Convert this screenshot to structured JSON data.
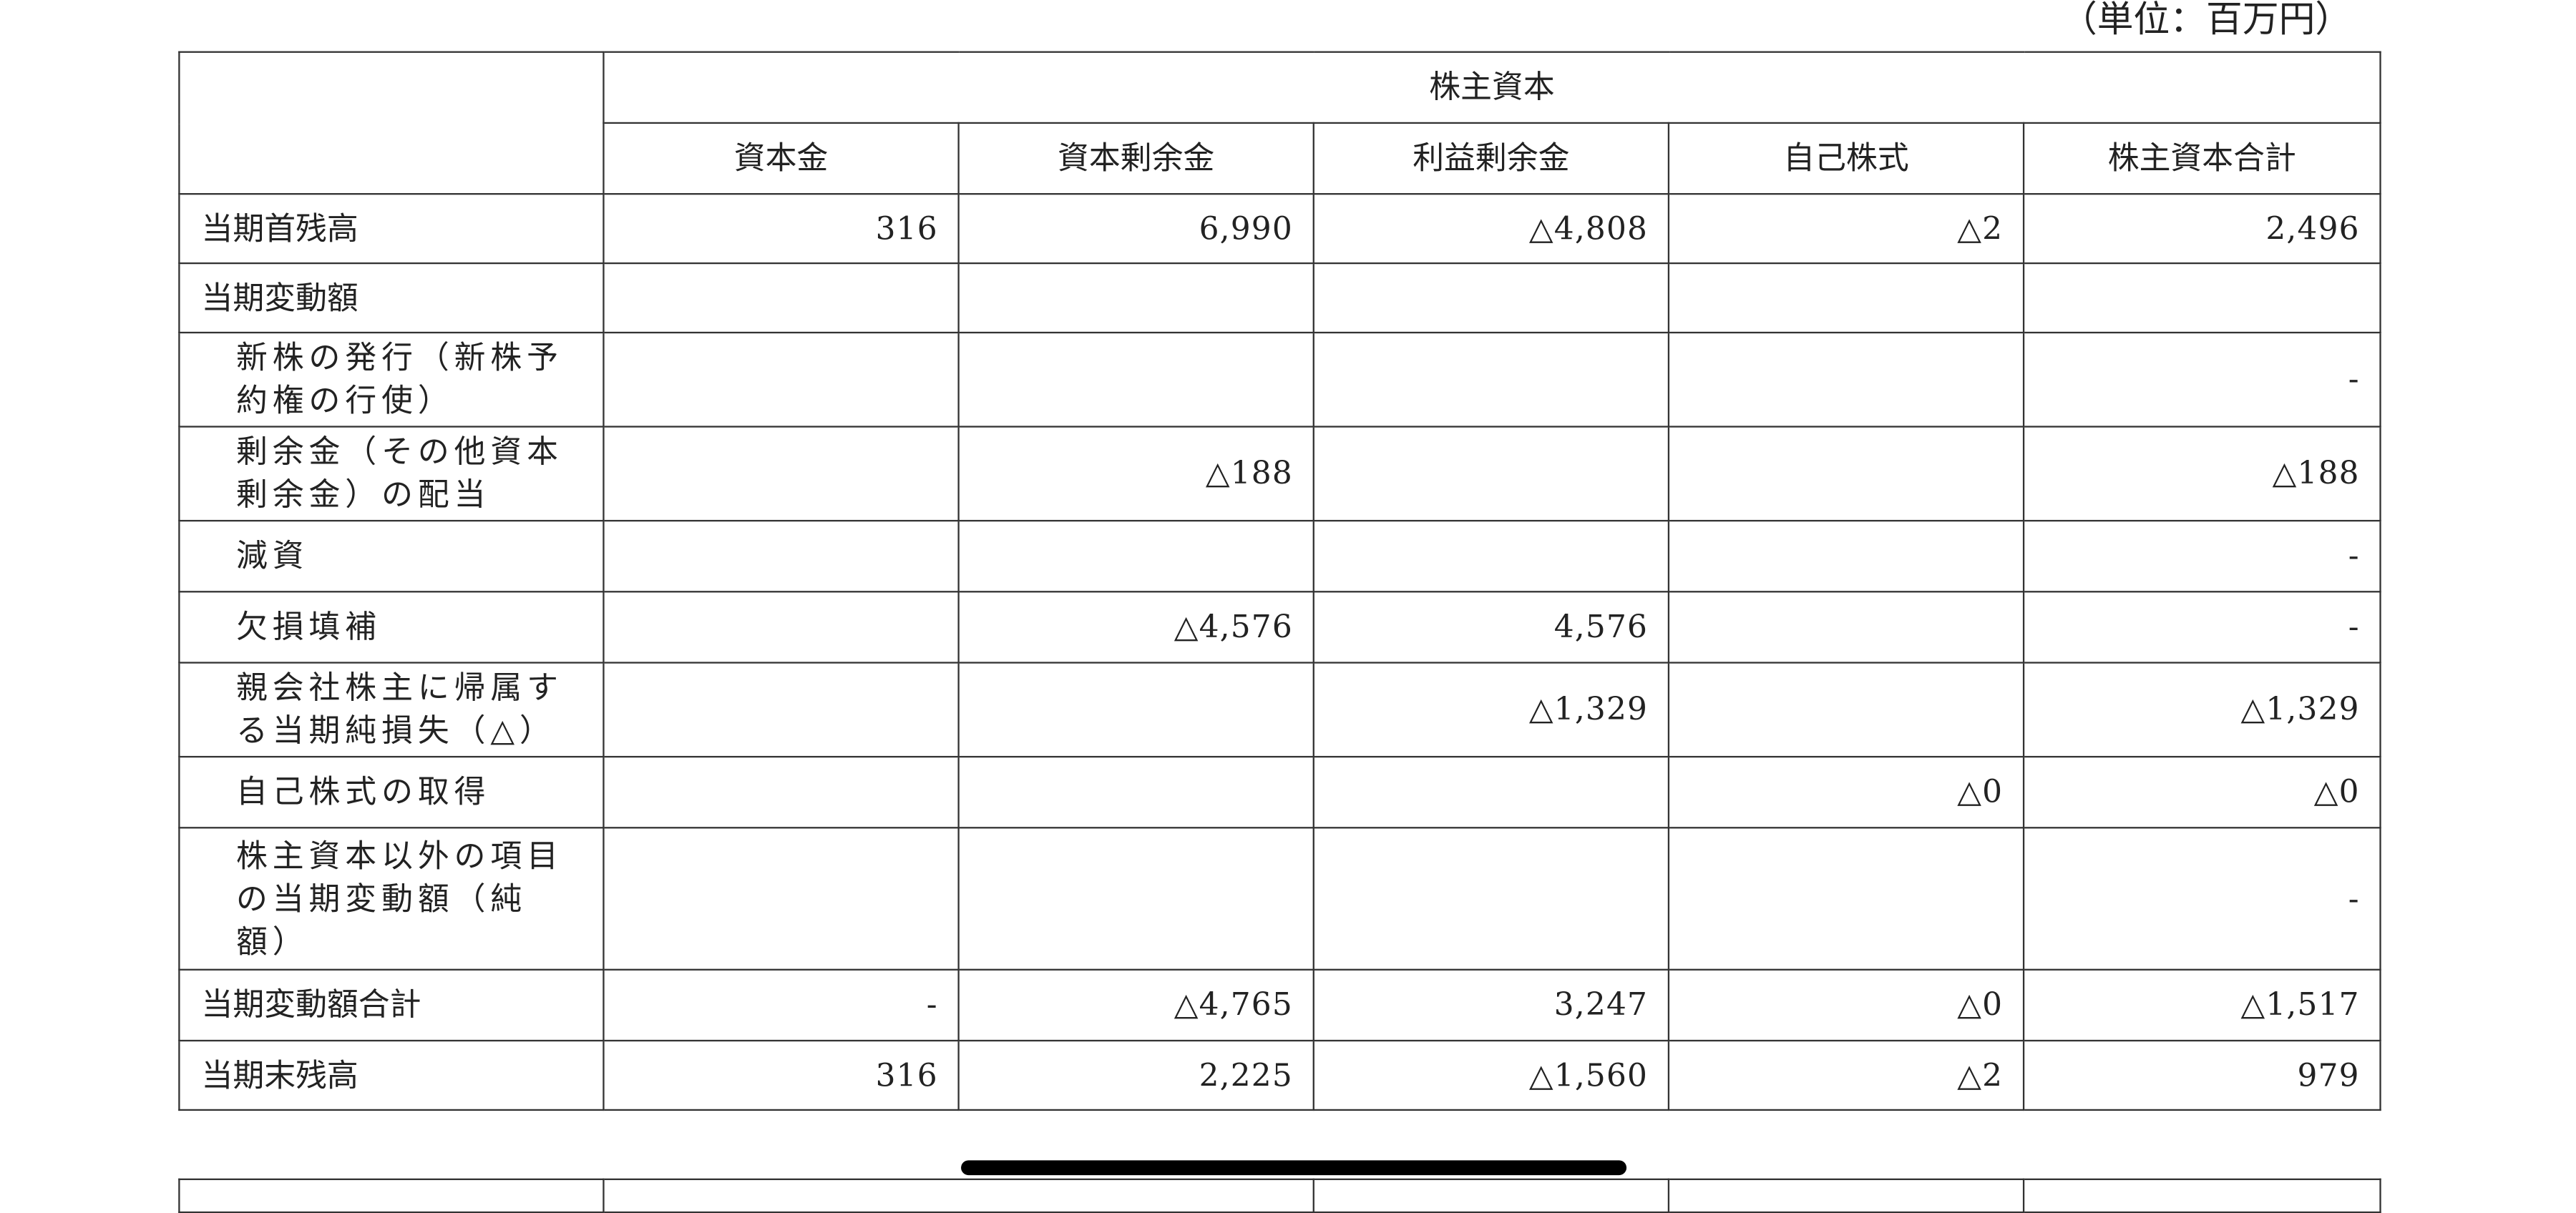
{
  "unit_note": "（単位：百万円）",
  "table": {
    "group_header": "株主資本",
    "columns": [
      "資本金",
      "資本剰余金",
      "利益剰余金",
      "自己株式",
      "株主資本合計"
    ],
    "rows": [
      {
        "label": "当期首残高",
        "indent": false,
        "values": [
          "316",
          "6,990",
          "△4,808",
          "△2",
          "2,496"
        ]
      },
      {
        "label": "当期変動額",
        "indent": false,
        "values": [
          "",
          "",
          "",
          "",
          ""
        ]
      },
      {
        "label": "新株の発行（新株予約権の行使）",
        "indent": true,
        "values": [
          "",
          "",
          "",
          "",
          "-"
        ]
      },
      {
        "label": "剰余金（その他資本剰余金）の配当",
        "indent": true,
        "values": [
          "",
          "△188",
          "",
          "",
          "△188"
        ]
      },
      {
        "label": "減資",
        "indent": true,
        "values": [
          "",
          "",
          "",
          "",
          "-"
        ]
      },
      {
        "label": "欠損填補",
        "indent": true,
        "values": [
          "",
          "△4,576",
          "4,576",
          "",
          "-"
        ]
      },
      {
        "label": "親会社株主に帰属する当期純損失（△）",
        "indent": true,
        "values": [
          "",
          "",
          "△1,329",
          "",
          "△1,329"
        ]
      },
      {
        "label": "自己株式の取得",
        "indent": true,
        "values": [
          "",
          "",
          "",
          "△0",
          "△0"
        ]
      },
      {
        "label": "株主資本以外の項目の当期変動額（純額）",
        "indent": true,
        "values": [
          "",
          "",
          "",
          "",
          "-"
        ]
      },
      {
        "label": "当期変動額合計",
        "indent": false,
        "values": [
          "-",
          "△4,765",
          "3,247",
          "△0",
          "△1,517"
        ]
      },
      {
        "label": "当期末残高",
        "indent": false,
        "values": [
          "316",
          "2,225",
          "△1,560",
          "△2",
          "979"
        ]
      }
    ]
  }
}
